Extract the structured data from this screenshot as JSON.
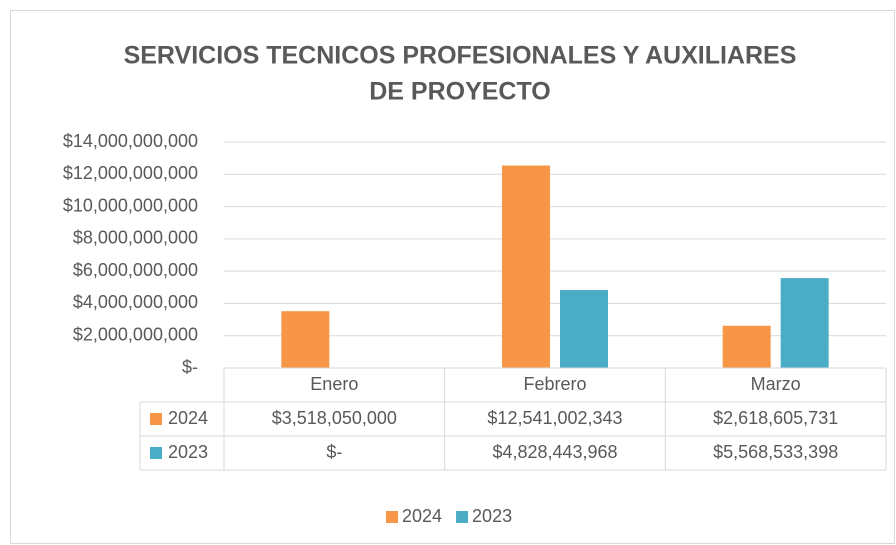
{
  "chart_data": {
    "type": "bar",
    "title": [
      "SERVICIOS TECNICOS PROFESIONALES Y AUXILIARES",
      "DE PROYECTO"
    ],
    "categories": [
      "Enero",
      "Febrero",
      "Marzo"
    ],
    "series": [
      {
        "name": "2024",
        "color": "#f79646",
        "values": [
          3518050000,
          12541002343,
          2618605731
        ],
        "value_labels": [
          "$3,518,050,000",
          "$12,541,002,343",
          "$2,618,605,731"
        ]
      },
      {
        "name": "2023",
        "color": "#4bacc6",
        "values": [
          0,
          4828443968,
          5568533398
        ],
        "value_labels": [
          "$-",
          "$4,828,443,968",
          "$5,568,533,398"
        ]
      }
    ],
    "ylim": [
      0,
      14000000000
    ],
    "yticks": [
      {
        "value": 0,
        "label": "$-"
      },
      {
        "value": 2000000000,
        "label": "$2,000,000,000"
      },
      {
        "value": 4000000000,
        "label": "$4,000,000,000"
      },
      {
        "value": 6000000000,
        "label": "$6,000,000,000"
      },
      {
        "value": 8000000000,
        "label": "$8,000,000,000"
      },
      {
        "value": 10000000000,
        "label": "$10,000,000,000"
      },
      {
        "value": 12000000000,
        "label": "$12,000,000,000"
      },
      {
        "value": 14000000000,
        "label": "$14,000,000,000"
      }
    ],
    "grid": true,
    "legend": "bottom"
  }
}
